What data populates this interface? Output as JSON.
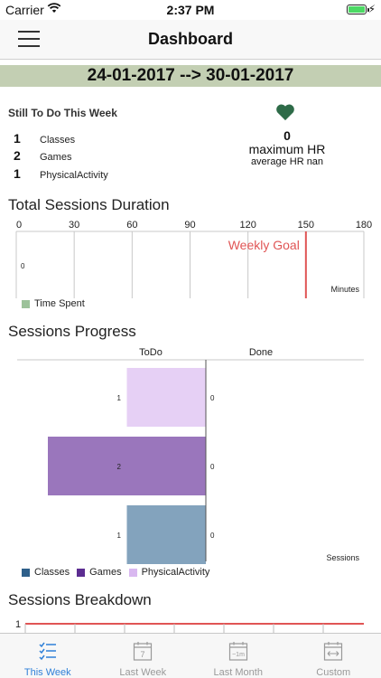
{
  "status_bar": {
    "carrier": "Carrier",
    "time": "2:37 PM"
  },
  "nav": {
    "title": "Dashboard",
    "menu_icon": "hamburger-menu-icon"
  },
  "date_range": "24-01-2017 --> 30-01-2017",
  "todo": {
    "heading": "Still To Do This Week",
    "items": [
      {
        "count": "1",
        "label": "Classes"
      },
      {
        "count": "2",
        "label": "Games"
      },
      {
        "count": "1",
        "label": "PhysicalActivity"
      }
    ]
  },
  "heart_rate": {
    "icon": "heart-icon",
    "value": "0",
    "label": "maximum HR",
    "average": "average HR nan"
  },
  "duration": {
    "title": "Total Sessions Duration",
    "chart_data": {
      "type": "bar",
      "orientation": "horizontal",
      "categories": [
        "0"
      ],
      "values": [
        0
      ],
      "xlim": [
        0,
        180
      ],
      "ticks": [
        "0",
        "30",
        "60",
        "90",
        "120",
        "150",
        "180"
      ],
      "xlabel": "Minutes",
      "goal_label": "Weekly Goal",
      "goal_value": 150,
      "legend": [
        {
          "name": "Time Spent",
          "color": "#9cc29a"
        }
      ],
      "grid": true
    }
  },
  "progress": {
    "title": "Sessions Progress",
    "chart_data": {
      "type": "bar",
      "orientation": "horizontal",
      "column_headers": [
        "ToDo",
        "Done"
      ],
      "categories": [
        "Classes",
        "Games",
        "PhysicalActivity"
      ],
      "todo_values": [
        1,
        2,
        1
      ],
      "done_values": [
        0,
        0,
        0
      ],
      "todo_labels": [
        "1",
        "2",
        "1"
      ],
      "done_labels": [
        "0",
        "0",
        "0"
      ],
      "xlabel": "Sessions",
      "series": [
        {
          "name": "Classes",
          "color": "#2e5f8a"
        },
        {
          "name": "Games",
          "color": "#5c2d91"
        },
        {
          "name": "PhysicalActivity",
          "color": "#d9b8f0"
        }
      ],
      "bar_colors": [
        "#e6d0f5",
        "#9a76bc",
        "#83a3bd"
      ]
    }
  },
  "breakdown": {
    "title": "Sessions Breakdown",
    "chart_data": {
      "type": "line",
      "y_tick": "1",
      "series": []
    }
  },
  "tabs": [
    {
      "label": "This Week",
      "icon": "checklist-icon",
      "active": true
    },
    {
      "label": "Last Week",
      "icon": "calendar-7-icon",
      "active": false
    },
    {
      "label": "Last Month",
      "icon": "calendar-1m-icon",
      "active": false
    },
    {
      "label": "Custom",
      "icon": "calendar-range-icon",
      "active": false
    }
  ],
  "colors": {
    "accent": "#2f80d8",
    "banner": "#c3cfb3",
    "goal_line": "#e05555",
    "heart": "#2e6b48"
  }
}
